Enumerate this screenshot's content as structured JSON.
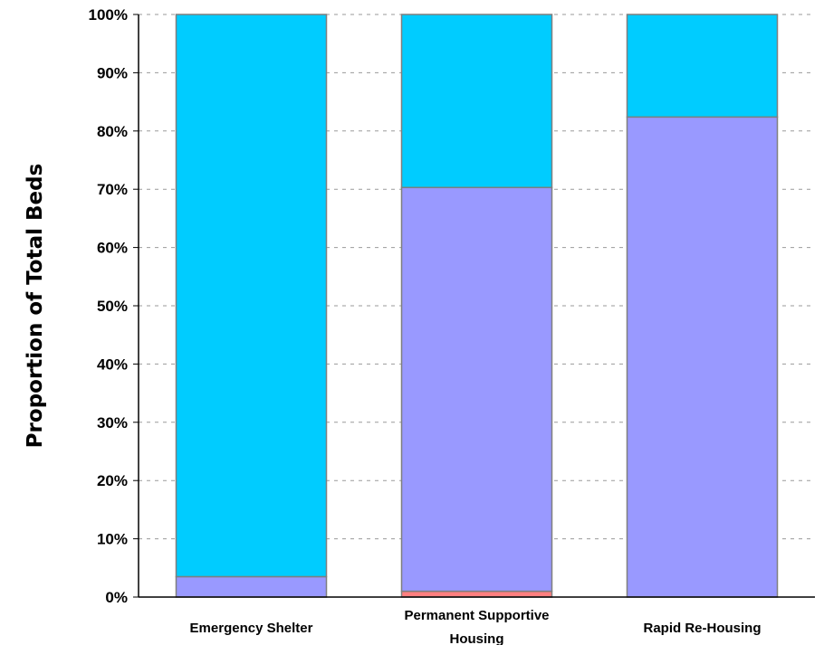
{
  "colors": {
    "background": "#ffffff",
    "gridline": "#9a9a9a",
    "axis": "#000000",
    "bar_border": "#7f7f7f",
    "segment_salmon": "#ff7f7f",
    "segment_lavender": "#9999ff",
    "segment_cyan": "#00ccff"
  },
  "chart_data": {
    "type": "bar",
    "stacked": true,
    "title": "",
    "xlabel": "",
    "ylabel": "Proportion of Total Beds",
    "ylim": [
      0,
      100
    ],
    "y_tick_format": "percent",
    "y_ticks": [
      "0%",
      "10%",
      "20%",
      "30%",
      "40%",
      "50%",
      "60%",
      "70%",
      "80%",
      "90%",
      "100%"
    ],
    "grid": {
      "horizontal": true,
      "style": "dashed"
    },
    "legend": "none",
    "categories": [
      "Emergency Shelter",
      "Permanent Supportive Housing",
      "Rapid Re-Housing"
    ],
    "series": [
      {
        "color": "#ff7f7f",
        "values": [
          0,
          1.0,
          0
        ]
      },
      {
        "color": "#9999ff",
        "values": [
          3.5,
          69.3,
          82.4
        ]
      },
      {
        "color": "#00ccff",
        "values": [
          96.5,
          29.7,
          17.6
        ]
      }
    ]
  }
}
